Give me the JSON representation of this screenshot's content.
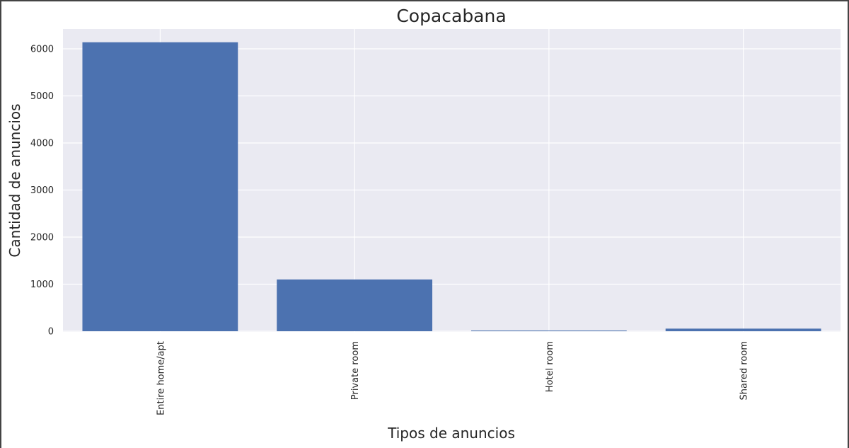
{
  "chart_data": {
    "type": "bar",
    "title": "Copacabana",
    "xlabel": "Tipos de anuncios",
    "ylabel": "Cantidad de anuncios",
    "categories": [
      "Entire home/apt",
      "Private room",
      "Hotel room",
      "Shared room"
    ],
    "values": [
      6140,
      1100,
      15,
      55
    ],
    "ylim": [
      0,
      6430
    ],
    "yticks": [
      0,
      1000,
      2000,
      3000,
      4000,
      5000,
      6000
    ],
    "grid": true,
    "colors": {
      "bar": "#4c72b0",
      "background": "#eaeaf2",
      "grid": "#ffffff",
      "text": "#262626"
    }
  }
}
